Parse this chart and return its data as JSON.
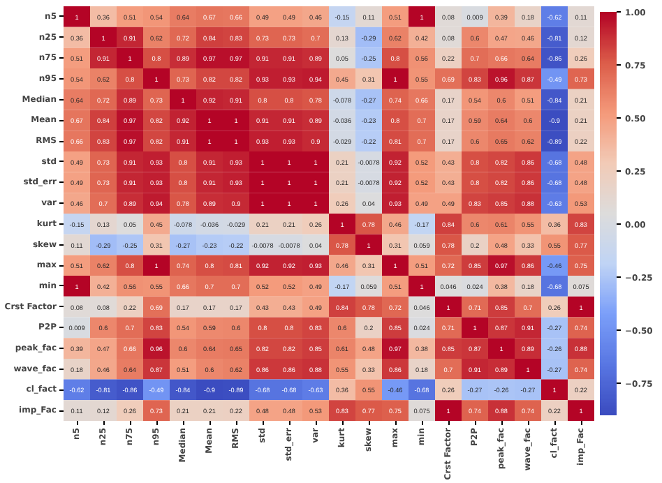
{
  "chart_data": {
    "type": "heatmap",
    "categories": [
      "n5",
      "n25",
      "n75",
      "n95",
      "Median",
      "Mean",
      "RMS",
      "std",
      "std_err",
      "var",
      "kurt",
      "skew",
      "max",
      "min",
      "Crst Factor",
      "P2P",
      "peak_fac",
      "wave_fac",
      "cl_fact",
      "imp_Fac"
    ],
    "y_categories": [
      "n5",
      "n25",
      "n75",
      "n95",
      "Median",
      "Mean",
      "RMS",
      "std",
      "std_err",
      "var",
      "kurt",
      "skew",
      "max",
      "min",
      "Crst Factor",
      "P2P",
      "peak_fac",
      "wave_fac",
      "cl_fact",
      "imp_Fac"
    ],
    "cells": [
      [
        1,
        0.36,
        0.51,
        0.54,
        0.64,
        0.67,
        0.66,
        0.49,
        0.49,
        0.46,
        -0.15,
        0.11,
        0.51,
        1,
        0.08,
        0.009,
        0.39,
        0.18,
        -0.62,
        0.11
      ],
      [
        0.36,
        1,
        0.91,
        0.62,
        0.72,
        0.84,
        0.83,
        0.73,
        0.73,
        0.7,
        0.13,
        -0.29,
        0.62,
        0.42,
        0.08,
        0.6,
        0.47,
        0.46,
        -0.81,
        0.12
      ],
      [
        0.51,
        0.91,
        1,
        0.8,
        0.89,
        0.97,
        0.97,
        0.91,
        0.91,
        0.89,
        0.05,
        -0.25,
        0.8,
        0.56,
        0.22,
        0.7,
        0.66,
        0.64,
        -0.86,
        0.26
      ],
      [
        0.54,
        0.62,
        0.8,
        1,
        0.73,
        0.82,
        0.82,
        0.93,
        0.93,
        0.94,
        0.45,
        0.31,
        1,
        0.55,
        0.69,
        0.83,
        0.96,
        0.87,
        -0.49,
        0.73
      ],
      [
        0.64,
        0.72,
        0.89,
        0.73,
        1,
        0.92,
        0.91,
        0.8,
        0.8,
        0.78,
        -0.078,
        -0.27,
        0.74,
        0.66,
        0.17,
        0.54,
        0.6,
        0.51,
        -0.84,
        0.21
      ],
      [
        0.67,
        0.84,
        0.97,
        0.82,
        0.92,
        1,
        1,
        0.91,
        0.91,
        0.89,
        -0.036,
        -0.23,
        0.8,
        0.7,
        0.17,
        0.59,
        0.64,
        0.6,
        -0.9,
        0.21
      ],
      [
        0.66,
        0.83,
        0.97,
        0.82,
        0.91,
        1,
        1,
        0.93,
        0.93,
        0.9,
        -0.029,
        -0.22,
        0.81,
        0.7,
        0.17,
        0.6,
        0.65,
        0.62,
        -0.89,
        0.22
      ],
      [
        0.49,
        0.73,
        0.91,
        0.93,
        0.8,
        0.91,
        0.93,
        1,
        1,
        1,
        0.21,
        -0.0078,
        0.92,
        0.52,
        0.43,
        0.8,
        0.82,
        0.86,
        -0.68,
        0.48
      ],
      [
        0.49,
        0.73,
        0.91,
        0.93,
        0.8,
        0.91,
        0.93,
        1,
        1,
        1,
        0.21,
        -0.0078,
        0.92,
        0.52,
        0.43,
        0.8,
        0.82,
        0.86,
        -0.68,
        0.48
      ],
      [
        0.46,
        0.7,
        0.89,
        0.94,
        0.78,
        0.89,
        0.9,
        1,
        1,
        1,
        0.26,
        0.04,
        0.93,
        0.49,
        0.49,
        0.83,
        0.85,
        0.88,
        -0.63,
        0.53
      ],
      [
        -0.15,
        0.13,
        0.05,
        0.45,
        -0.078,
        -0.036,
        -0.029,
        0.21,
        0.21,
        0.26,
        1,
        0.78,
        0.46,
        -0.17,
        0.84,
        0.6,
        0.61,
        0.55,
        0.36,
        0.83
      ],
      [
        0.11,
        -0.29,
        -0.25,
        0.31,
        -0.27,
        -0.23,
        -0.22,
        -0.0078,
        -0.0078,
        0.04,
        0.78,
        1,
        0.31,
        0.059,
        0.78,
        0.2,
        0.48,
        0.33,
        0.55,
        0.77
      ],
      [
        0.51,
        0.62,
        0.8,
        1,
        0.74,
        0.8,
        0.81,
        0.92,
        0.92,
        0.93,
        0.46,
        0.31,
        1,
        0.51,
        0.72,
        0.85,
        0.97,
        0.86,
        -0.46,
        0.75
      ],
      [
        1,
        0.42,
        0.56,
        0.55,
        0.66,
        0.7,
        0.7,
        0.52,
        0.52,
        0.49,
        -0.17,
        0.059,
        0.51,
        1,
        0.046,
        0.024,
        0.38,
        0.18,
        -0.68,
        0.075
      ],
      [
        0.08,
        0.08,
        0.22,
        0.69,
        0.17,
        0.17,
        0.17,
        0.43,
        0.43,
        0.49,
        0.84,
        0.78,
        0.72,
        0.046,
        1,
        0.71,
        0.85,
        0.7,
        0.26,
        1
      ],
      [
        0.009,
        0.6,
        0.7,
        0.83,
        0.54,
        0.59,
        0.6,
        0.8,
        0.8,
        0.83,
        0.6,
        0.2,
        0.85,
        0.024,
        0.71,
        1,
        0.87,
        0.91,
        -0.27,
        0.74
      ],
      [
        0.39,
        0.47,
        0.66,
        0.96,
        0.6,
        0.64,
        0.65,
        0.82,
        0.82,
        0.85,
        0.61,
        0.48,
        0.97,
        0.38,
        0.85,
        0.87,
        1,
        0.89,
        -0.26,
        0.88
      ],
      [
        0.18,
        0.46,
        0.64,
        0.87,
        0.51,
        0.6,
        0.62,
        0.86,
        0.86,
        0.88,
        0.55,
        0.33,
        0.86,
        0.18,
        0.7,
        0.91,
        0.89,
        1,
        -0.27,
        0.74
      ],
      [
        -0.62,
        -0.81,
        -0.86,
        -0.49,
        -0.84,
        -0.9,
        -0.89,
        -0.68,
        -0.68,
        -0.63,
        0.36,
        0.55,
        -0.46,
        -0.68,
        0.26,
        -0.27,
        -0.26,
        -0.27,
        1,
        0.22
      ],
      [
        0.11,
        0.12,
        0.26,
        0.73,
        0.21,
        0.21,
        0.22,
        0.48,
        0.48,
        0.53,
        0.83,
        0.77,
        0.75,
        0.075,
        1,
        0.74,
        0.88,
        0.74,
        0.22,
        1
      ]
    ],
    "data_labels": true,
    "clim": [
      -0.9,
      1
    ],
    "cticks": [
      {
        "value": -0.75,
        "label": "−0.75"
      },
      {
        "value": -0.5,
        "label": "−0.50"
      },
      {
        "value": -0.25,
        "label": "−0.25"
      },
      {
        "value": 0,
        "label": "0.00"
      },
      {
        "value": 0.25,
        "label": "0.25"
      },
      {
        "value": 0.5,
        "label": "0.50"
      },
      {
        "value": 0.75,
        "label": "0.75"
      },
      {
        "value": 1,
        "label": "1.00"
      }
    ]
  }
}
